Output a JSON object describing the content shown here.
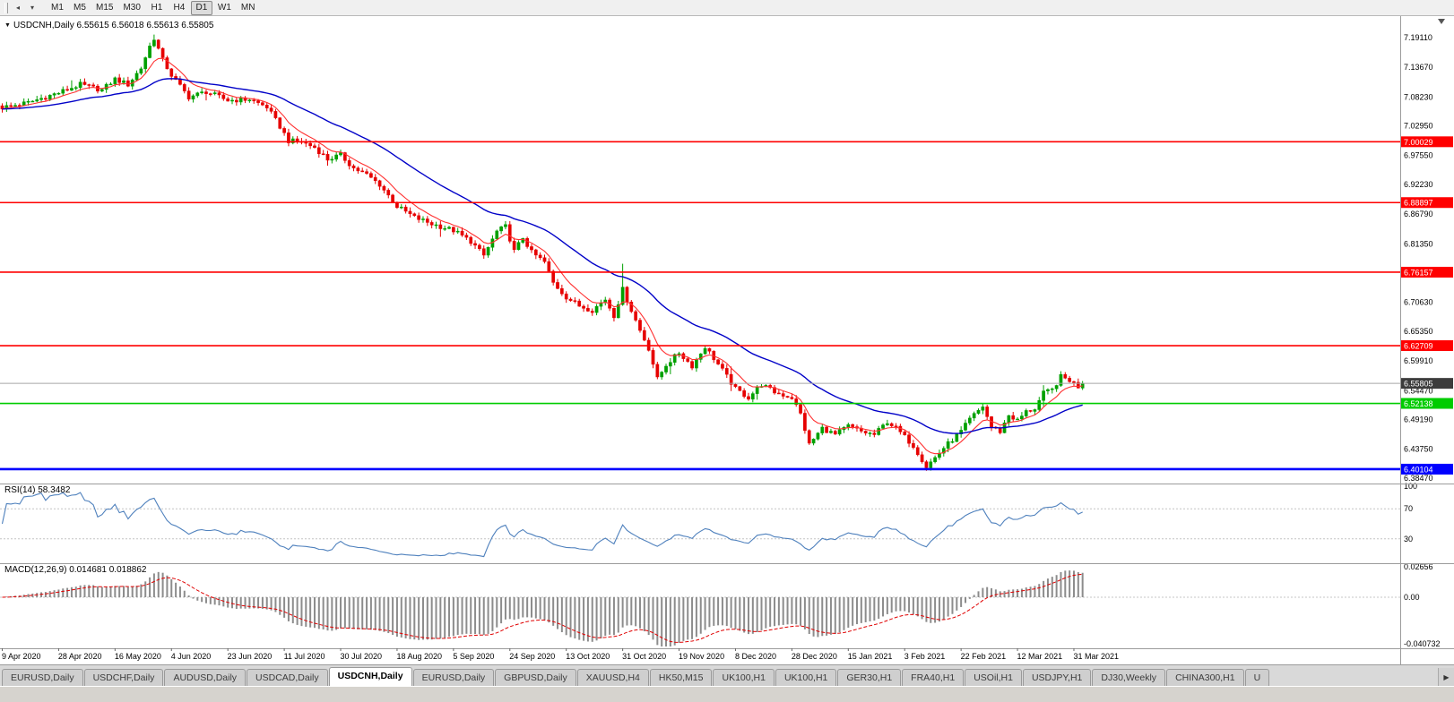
{
  "toolbar": {
    "icons": [
      {
        "name": "toolbar-overflow-icon",
        "glyph": "◂"
      },
      {
        "name": "toolbar-dropdown-icon",
        "glyph": "▾"
      }
    ],
    "timeframes": [
      "M1",
      "M5",
      "M15",
      "M30",
      "H1",
      "H4",
      "D1",
      "W1",
      "MN"
    ],
    "active_timeframe": "D1"
  },
  "main_chart": {
    "dropdown_glyph": "▼",
    "symbol": "USDCNH,Daily",
    "info": "USDCNH,Daily 6.55615 6.56018 6.55613 6.55805",
    "open": "6.55615",
    "high": "6.56018",
    "low": "6.55613",
    "close": "6.55805"
  },
  "indicators": {
    "rsi": {
      "label": "RSI(14) 58.3482",
      "period": 14,
      "last": 58.3482,
      "axis_labels": [
        "100",
        "70",
        "30"
      ],
      "guide_levels": [
        70,
        30
      ],
      "color": "#4f81bd"
    },
    "macd": {
      "label": "MACD(12,26,9) 0.014681 0.018862",
      "fast": 12,
      "slow": 26,
      "signal": 9,
      "values": [
        0.014681,
        0.018862
      ],
      "axis_labels": [
        "0.02656",
        "0.00",
        "-0.040732"
      ],
      "hist_color": "#8c8c8c",
      "signal_color": "#e00000"
    }
  },
  "tabbar": {
    "scroll_right_glyph": "▶",
    "tabs": [
      {
        "label": "EURUSD,Daily",
        "active": false
      },
      {
        "label": "USDCHF,Daily",
        "active": false
      },
      {
        "label": "AUDUSD,Daily",
        "active": false
      },
      {
        "label": "USDCAD,Daily",
        "active": false
      },
      {
        "label": "USDCNH,Daily",
        "active": true
      },
      {
        "label": "EURUSD,Daily",
        "active": false
      },
      {
        "label": "GBPUSD,Daily",
        "active": false
      },
      {
        "label": "XAUUSD,H4",
        "active": false
      },
      {
        "label": "HK50,M15",
        "active": false
      },
      {
        "label": "UK100,H1",
        "active": false
      },
      {
        "label": "UK100,H1",
        "active": false
      },
      {
        "label": "GER30,H1",
        "active": false
      },
      {
        "label": "FRA40,H1",
        "active": false
      },
      {
        "label": "USOil,H1",
        "active": false
      },
      {
        "label": "USDJPY,H1",
        "active": false
      },
      {
        "label": "DJ30,Weekly",
        "active": false
      },
      {
        "label": "CHINA300,H1",
        "active": false
      },
      {
        "label": "U",
        "active": false
      }
    ]
  },
  "chart_data": {
    "type": "candlestick",
    "title": "USDCNH,Daily",
    "current_bar": {
      "open": 6.55615,
      "high": 6.56018,
      "low": 6.55613,
      "close": 6.55805
    },
    "current_price": 6.55805,
    "grid": false,
    "price_range": {
      "top": 7.227,
      "bottom": 6.378
    },
    "price_axis_labels": [
      "7.19110",
      "7.13670",
      "7.08230",
      "7.02950",
      "6.97550",
      "6.92230",
      "6.86790",
      "6.81350",
      "6.76070",
      "6.70630",
      "6.65350",
      "6.59910",
      "6.54470",
      "6.49190",
      "6.43750",
      "6.38470"
    ],
    "x_axis_labels": [
      "9 Apr 2020",
      "28 Apr 2020",
      "16 May 2020",
      "4 Jun 2020",
      "23 Jun 2020",
      "11 Jul 2020",
      "30 Jul 2020",
      "18 Aug 2020",
      "5 Sep 2020",
      "24 Sep 2020",
      "13 Oct 2020",
      "31 Oct 2020",
      "19 Nov 2020",
      "8 Dec 2020",
      "28 Dec 2020",
      "15 Jan 2021",
      "3 Feb 2021",
      "22 Feb 2021",
      "12 Mar 2021",
      "31 Mar 2021"
    ],
    "candles_count": 250,
    "close_anchors": [
      [
        0,
        7.063
      ],
      [
        6,
        7.072
      ],
      [
        13,
        7.09
      ],
      [
        18,
        7.105
      ],
      [
        23,
        7.095
      ],
      [
        26,
        7.115
      ],
      [
        29,
        7.105
      ],
      [
        32,
        7.135
      ],
      [
        34,
        7.175
      ],
      [
        35,
        7.19
      ],
      [
        37,
        7.15
      ],
      [
        39,
        7.122
      ],
      [
        43,
        7.082
      ],
      [
        47,
        7.092
      ],
      [
        52,
        7.076
      ],
      [
        57,
        7.078
      ],
      [
        61,
        7.064
      ],
      [
        64,
        7.028
      ],
      [
        66,
        7.002
      ],
      [
        69,
        7.0
      ],
      [
        72,
        6.99
      ],
      [
        75,
        6.968
      ],
      [
        78,
        6.976
      ],
      [
        81,
        6.952
      ],
      [
        84,
        6.94
      ],
      [
        87,
        6.922
      ],
      [
        91,
        6.882
      ],
      [
        95,
        6.862
      ],
      [
        99,
        6.85
      ],
      [
        104,
        6.838
      ],
      [
        108,
        6.818
      ],
      [
        111,
        6.792
      ],
      [
        114,
        6.836
      ],
      [
        116,
        6.845
      ],
      [
        118,
        6.8
      ],
      [
        120,
        6.825
      ],
      [
        122,
        6.798
      ],
      [
        125,
        6.78
      ],
      [
        127,
        6.742
      ],
      [
        130,
        6.716
      ],
      [
        133,
        6.7
      ],
      [
        136,
        6.692
      ],
      [
        139,
        6.712
      ],
      [
        141,
        6.682
      ],
      [
        143,
        6.73
      ],
      [
        145,
        6.692
      ],
      [
        147,
        6.655
      ],
      [
        149,
        6.622
      ],
      [
        151,
        6.566
      ],
      [
        153,
        6.592
      ],
      [
        156,
        6.614
      ],
      [
        159,
        6.59
      ],
      [
        162,
        6.625
      ],
      [
        164,
        6.604
      ],
      [
        166,
        6.582
      ],
      [
        169,
        6.548
      ],
      [
        172,
        6.532
      ],
      [
        175,
        6.556
      ],
      [
        178,
        6.542
      ],
      [
        182,
        6.532
      ],
      [
        184,
        6.502
      ],
      [
        186,
        6.446
      ],
      [
        189,
        6.476
      ],
      [
        192,
        6.464
      ],
      [
        195,
        6.48
      ],
      [
        198,
        6.47
      ],
      [
        201,
        6.464
      ],
      [
        204,
        6.488
      ],
      [
        206,
        6.476
      ],
      [
        208,
        6.46
      ],
      [
        210,
        6.444
      ],
      [
        213,
        6.406
      ],
      [
        215,
        6.422
      ],
      [
        217,
        6.44
      ],
      [
        219,
        6.455
      ],
      [
        221,
        6.47
      ],
      [
        223,
        6.492
      ],
      [
        226,
        6.516
      ],
      [
        228,
        6.478
      ],
      [
        230,
        6.47
      ],
      [
        232,
        6.5
      ],
      [
        234,
        6.49
      ],
      [
        236,
        6.506
      ],
      [
        238,
        6.512
      ],
      [
        240,
        6.54
      ],
      [
        242,
        6.546
      ],
      [
        244,
        6.57
      ],
      [
        246,
        6.564
      ],
      [
        248,
        6.552
      ],
      [
        249,
        6.558
      ]
    ],
    "wick_overrides": [
      [
        35,
        7.1965,
        "h"
      ],
      [
        116,
        6.855,
        "h"
      ],
      [
        143,
        6.777,
        "h"
      ],
      [
        213,
        6.398,
        "l"
      ]
    ],
    "levels": [
      {
        "value": 7.00029,
        "label": "7.00029",
        "color": "#ff0000",
        "width": 1.6
      },
      {
        "value": 6.88897,
        "label": "6.88897",
        "color": "#ff0000",
        "width": 1.6
      },
      {
        "value": 6.76157,
        "label": "6.76157",
        "color": "#ff0000",
        "width": 1.6
      },
      {
        "value": 6.62709,
        "label": "6.62709",
        "color": "#ff0000",
        "width": 1.6
      },
      {
        "value": 6.52138,
        "label": "6.52138",
        "color": "#00cc00",
        "width": 1.6
      },
      {
        "value": 6.40104,
        "label": "6.40104",
        "color": "#0000ff",
        "width": 2.6
      }
    ],
    "current_price_box": {
      "label": "6.55805",
      "bg": "#3c3c3c",
      "line_color": "#a8a8a8"
    },
    "moving_averages": [
      {
        "name": "fast-ma",
        "period": 8,
        "color": "#ff3030"
      },
      {
        "name": "slow-ma",
        "period": 34,
        "color": "#0202c8"
      }
    ],
    "colors": {
      "bull": "#00a000",
      "bear": "#e60000",
      "axis_text": "#000000",
      "divider": "#9c9c9c"
    }
  }
}
